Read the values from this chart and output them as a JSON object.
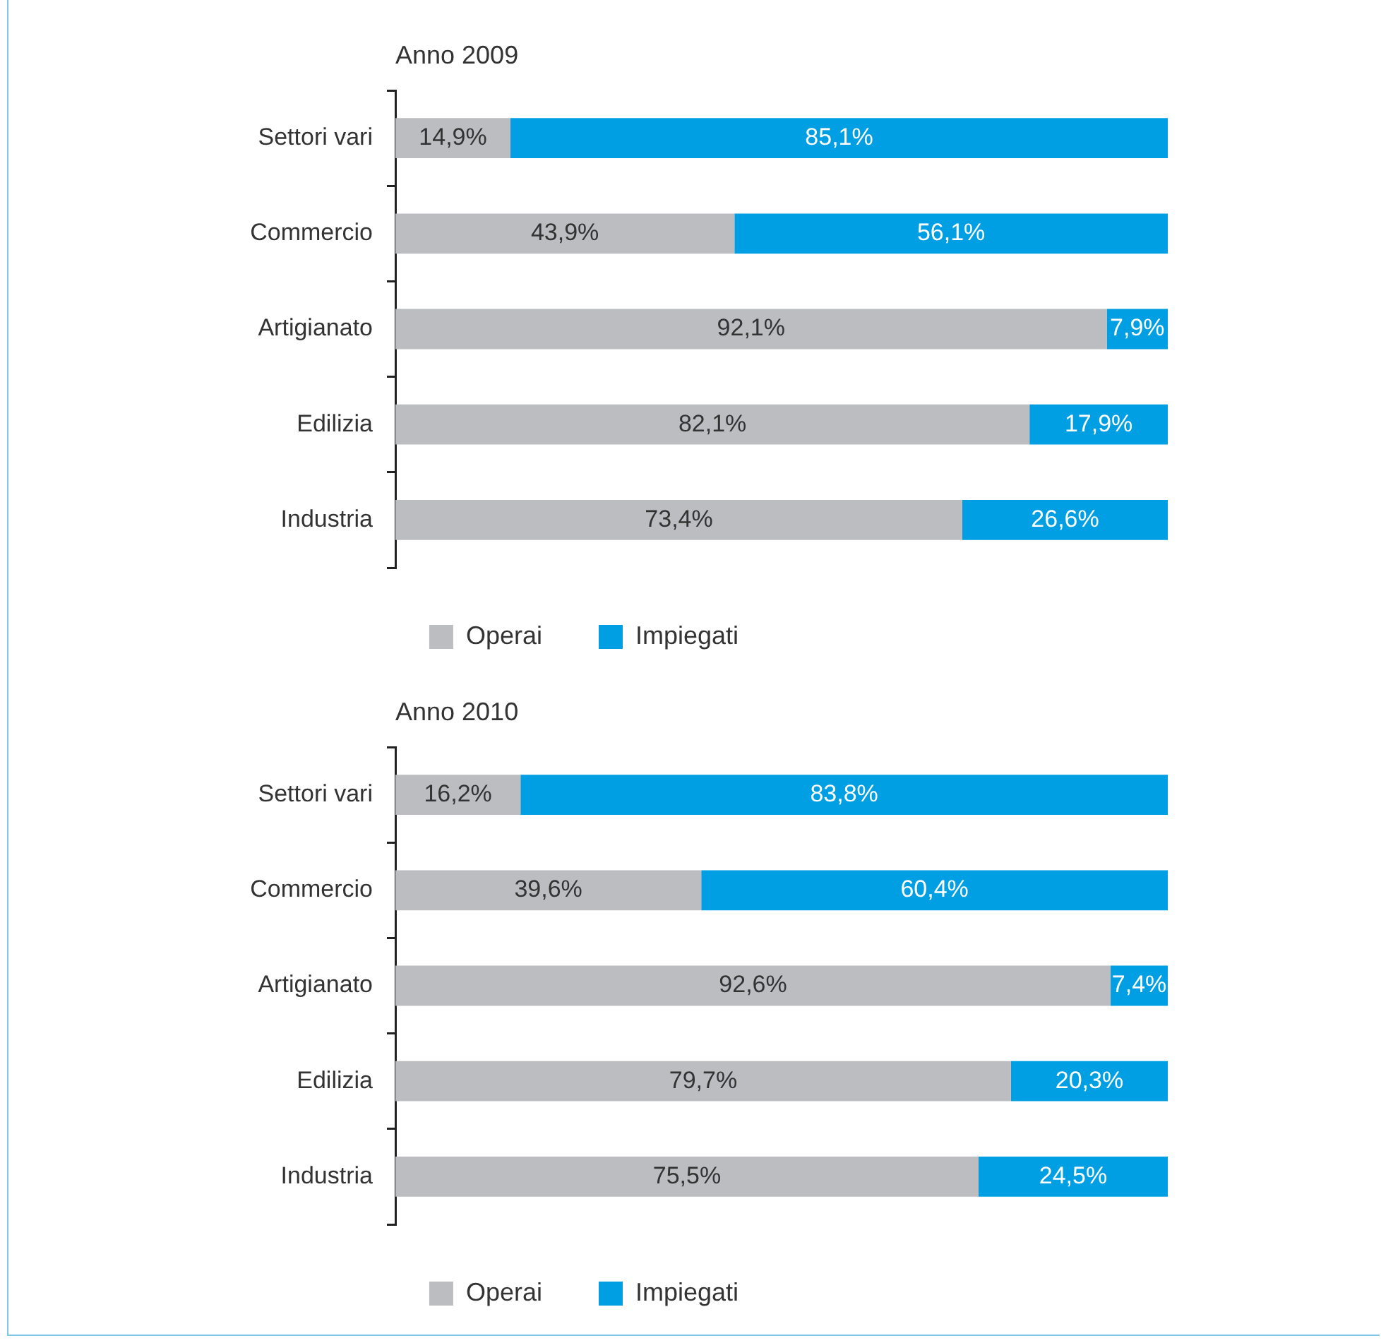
{
  "chart_data": [
    {
      "type": "bar",
      "orientation": "horizontal",
      "stacked": true,
      "title": "Anno 2009",
      "categories": [
        "Settori vari",
        "Commercio",
        "Artigianato",
        "Edilizia",
        "Industria"
      ],
      "xlim": [
        0,
        100
      ],
      "tick_labels": "y",
      "grid": false,
      "legend": "bottom",
      "series": [
        {
          "name": "Operai",
          "color": "#bcbdc0",
          "values": [
            14.9,
            43.9,
            92.1,
            82.1,
            73.4
          ],
          "value_labels": [
            "14,9%",
            "43,9%",
            "92,1%",
            "82,1%",
            "73,4%"
          ]
        },
        {
          "name": "Impiegati",
          "color": "#009fe3",
          "values": [
            85.1,
            56.1,
            7.9,
            17.9,
            26.6
          ],
          "value_labels": [
            "85,1%",
            "56,1%",
            "7,9%",
            "17,9%",
            "26,6%"
          ]
        }
      ]
    },
    {
      "type": "bar",
      "orientation": "horizontal",
      "stacked": true,
      "title": "Anno 2010",
      "categories": [
        "Settori vari",
        "Commercio",
        "Artigianato",
        "Edilizia",
        "Industria"
      ],
      "xlim": [
        0,
        100
      ],
      "tick_labels": "y",
      "grid": false,
      "legend": "bottom",
      "series": [
        {
          "name": "Operai",
          "color": "#bcbdc0",
          "values": [
            16.2,
            39.6,
            92.6,
            79.7,
            75.5
          ],
          "value_labels": [
            "16,2%",
            "39,6%",
            "92,6%",
            "79,7%",
            "75,5%"
          ]
        },
        {
          "name": "Impiegati",
          "color": "#009fe3",
          "values": [
            83.8,
            60.4,
            7.4,
            20.3,
            24.5
          ],
          "value_labels": [
            "83,8%",
            "60,4%",
            "7,4%",
            "20,3%",
            "24,5%"
          ]
        }
      ]
    }
  ]
}
